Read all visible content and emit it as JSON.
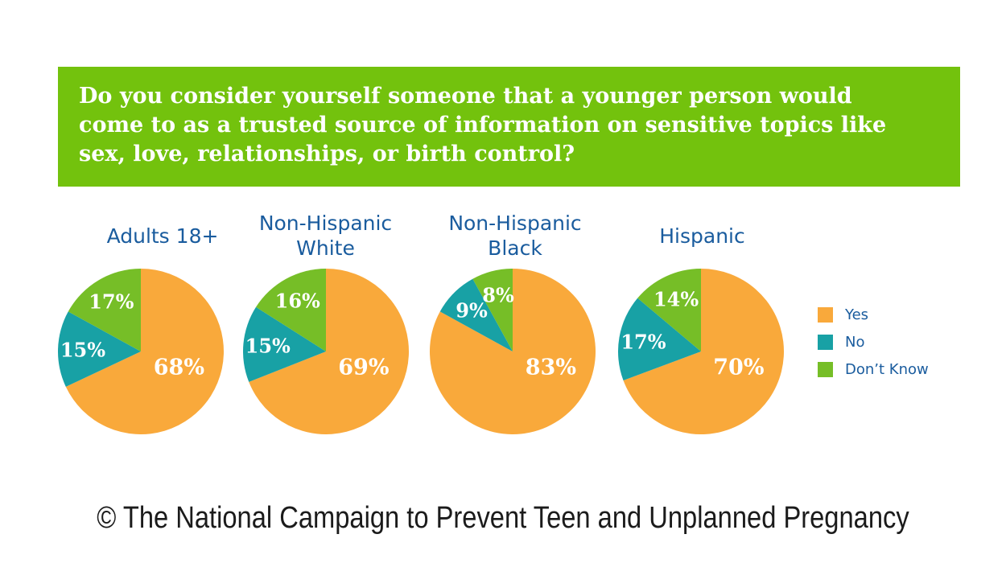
{
  "header": {
    "question": "Do you consider yourself someone that a younger person would\ncome to as a trusted source of information on sensitive topics like\nsex, love, relationships, or birth control?",
    "background_color": "#73C20D",
    "text_color": "#FFFFFF"
  },
  "legend": {
    "position": "right",
    "items": [
      {
        "label": "Yes",
        "color": "#F9A93B"
      },
      {
        "label": "No",
        "color": "#18A1A5"
      },
      {
        "label": "Don’t Know",
        "color": "#76BE27"
      }
    ]
  },
  "chart_data": [
    {
      "type": "pie",
      "title": "Adults 18+",
      "categories": [
        "Yes",
        "No",
        "Don't Know"
      ],
      "values": [
        68,
        15,
        17
      ],
      "value_suffix": "%",
      "start_angle_deg": 0,
      "direction": "clockwise",
      "labels_inside": true
    },
    {
      "type": "pie",
      "title": "Non-Hispanic\nWhite",
      "categories": [
        "Yes",
        "No",
        "Don't Know"
      ],
      "values": [
        69,
        15,
        16
      ],
      "value_suffix": "%",
      "start_angle_deg": 0,
      "direction": "clockwise",
      "labels_inside": true
    },
    {
      "type": "pie",
      "title": "Non-Hispanic\nBlack",
      "categories": [
        "Yes",
        "No",
        "Don't Know"
      ],
      "values": [
        83,
        9,
        8
      ],
      "value_suffix": "%",
      "start_angle_deg": 0,
      "direction": "clockwise",
      "labels_inside": true
    },
    {
      "type": "pie",
      "title": "Hispanic",
      "categories": [
        "Yes",
        "No",
        "Don't Know"
      ],
      "values": [
        70,
        17,
        14
      ],
      "value_suffix": "%",
      "start_angle_deg": 0,
      "direction": "clockwise",
      "labels_inside": true
    }
  ],
  "colors": {
    "title_text": "#1A5C9E",
    "slice_label_text": "#FFFFFF",
    "background": "#FFFFFF",
    "footer_text": "#1B1B1B"
  },
  "footer": {
    "copyright": "© The National Campaign to Prevent Teen and Unplanned Pregnancy"
  }
}
